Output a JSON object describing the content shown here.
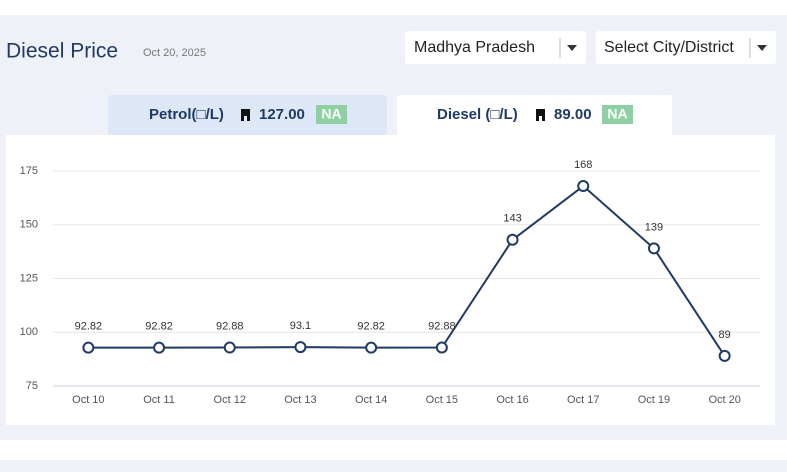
{
  "header": {
    "title": "Diesel Price",
    "date": "Oct 20, 2025",
    "state_select": "Madhya Pradesh",
    "city_select": "Select City/District"
  },
  "tabs": [
    {
      "label": "Petrol(□/L)",
      "price": "127.00",
      "badge": "NA"
    },
    {
      "label": "Diesel (□/L)",
      "price": "89.00",
      "badge": "NA"
    }
  ],
  "chart_data": {
    "type": "line",
    "categories": [
      "Oct 10",
      "Oct 11",
      "Oct 12",
      "Oct 13",
      "Oct 14",
      "Oct 15",
      "Oct 16",
      "Oct 17",
      "Oct 19",
      "Oct 20"
    ],
    "values": [
      92.82,
      92.82,
      92.88,
      93.1,
      92.82,
      92.88,
      143,
      168,
      139,
      89
    ],
    "color": "#1f3a63",
    "ylim": [
      75,
      175
    ],
    "yticks": [
      75,
      100,
      125,
      150,
      175
    ],
    "grid": true
  }
}
